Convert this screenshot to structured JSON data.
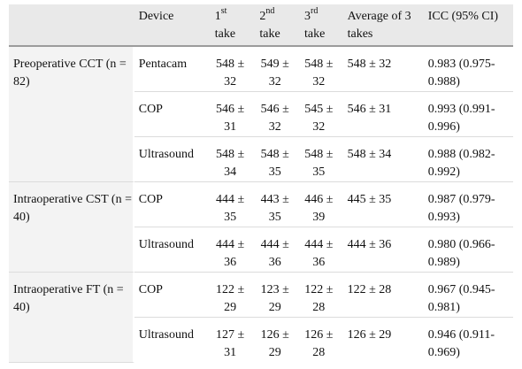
{
  "header": {
    "device": "Device",
    "take1_num": "1",
    "take1_sup": "st",
    "take1_word": "take",
    "take2_num": "2",
    "take2_sup": "nd",
    "take2_word": "take",
    "take3_num": "3",
    "take3_sup": "rd",
    "take3_word": "take",
    "average": "Average of 3 takes",
    "icc": "ICC (95% CI)"
  },
  "groups": [
    {
      "label": "Preoperative CCT (n = 82)",
      "rows": [
        {
          "device": "Pentacam",
          "t1": "548 ± 32",
          "t2": "549 ± 32",
          "t3": "548 ± 32",
          "avg": "548 ± 32",
          "icc": "0.983 (0.975-0.988)"
        },
        {
          "device": "COP",
          "t1": "546 ± 31",
          "t2": "546 ± 32",
          "t3": "545 ± 32",
          "avg": "546 ± 31",
          "icc": "0.993 (0.991-0.996)"
        },
        {
          "device": "Ultrasound",
          "t1": "548 ± 34",
          "t2": "548 ± 35",
          "t3": "548 ± 35",
          "avg": "548 ± 34",
          "icc": "0.988 (0.982-0.992)"
        }
      ]
    },
    {
      "label": "Intraoperative CST (n = 40)",
      "rows": [
        {
          "device": "COP",
          "t1": "444 ± 35",
          "t2": "443 ± 35",
          "t3": "446 ± 39",
          "avg": "445 ± 35",
          "icc": "0.987 (0.979-0.993)"
        },
        {
          "device": "Ultrasound",
          "t1": "444 ± 36",
          "t2": "444 ± 36",
          "t3": "444 ± 36",
          "avg": "444 ± 36",
          "icc": "0.980 (0.966-0.989)"
        }
      ]
    },
    {
      "label": "Intraoperative FT (n = 40)",
      "rows": [
        {
          "device": "COP",
          "t1": "122 ± 29",
          "t2": "123 ± 29",
          "t3": "122 ± 28",
          "avg": "122 ± 28",
          "icc": "0.967 (0.945-0.981)"
        },
        {
          "device": "Ultrasound",
          "t1": "127 ± 31",
          "t2": "126 ± 29",
          "t3": "126 ± 28",
          "avg": "126 ± 29",
          "icc": "0.946 (0.911-0.969)"
        }
      ]
    }
  ]
}
